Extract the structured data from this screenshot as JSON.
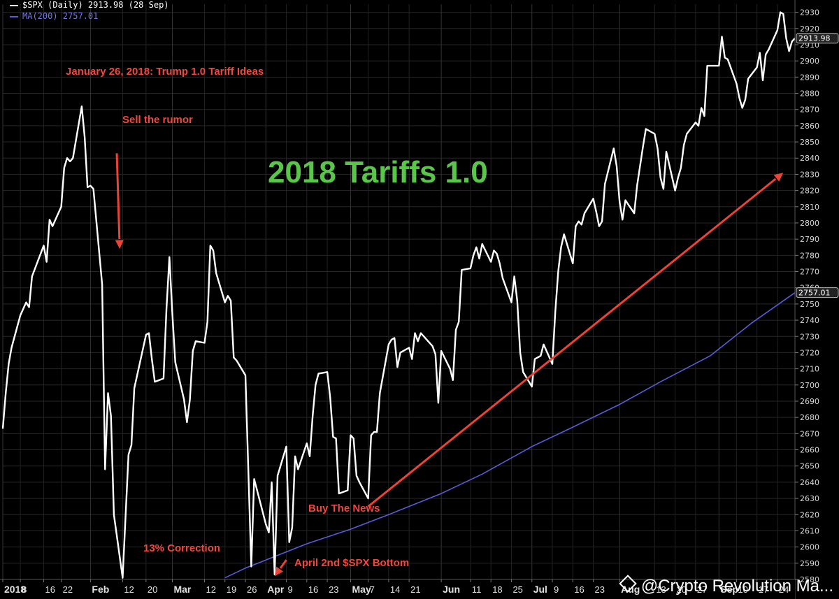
{
  "chart_data": {
    "type": "line",
    "legend": [
      {
        "name": "$SPX (Daily) 2913.98 (28 Sep)",
        "color": "#ffffff"
      },
      {
        "name": "MA(200) 2757.01",
        "color": "#5b5bd6"
      }
    ],
    "xlim": [
      "2018-01-02",
      "2018-09-30"
    ],
    "ylim": [
      2580,
      2935
    ],
    "y_ticks": [
      2580,
      2590,
      2600,
      2610,
      2620,
      2630,
      2640,
      2650,
      2660,
      2670,
      2680,
      2690,
      2700,
      2710,
      2720,
      2730,
      2740,
      2750,
      2760,
      2770,
      2780,
      2790,
      2800,
      2810,
      2820,
      2830,
      2840,
      2850,
      2860,
      2870,
      2880,
      2890,
      2900,
      2910,
      2920,
      2930
    ],
    "x_ticks": [
      {
        "date": "2018-01-02",
        "label": "2018",
        "bold": true
      },
      {
        "date": "2018-01-08",
        "label": "8"
      },
      {
        "date": "2018-01-16",
        "label": "16"
      },
      {
        "date": "2018-01-22",
        "label": "22"
      },
      {
        "date": "2018-02-01",
        "label": "Feb",
        "bold": true
      },
      {
        "date": "2018-02-12",
        "label": "12"
      },
      {
        "date": "2018-02-20",
        "label": "20"
      },
      {
        "date": "2018-03-01",
        "label": "Mar",
        "bold": true
      },
      {
        "date": "2018-03-12",
        "label": "12"
      },
      {
        "date": "2018-03-19",
        "label": "19"
      },
      {
        "date": "2018-03-26",
        "label": "26"
      },
      {
        "date": "2018-04-02",
        "label": "Apr",
        "bold": true
      },
      {
        "date": "2018-04-09",
        "label": "9"
      },
      {
        "date": "2018-04-16",
        "label": "16"
      },
      {
        "date": "2018-04-23",
        "label": "23"
      },
      {
        "date": "2018-05-01",
        "label": "May",
        "bold": true
      },
      {
        "date": "2018-05-07",
        "label": "7"
      },
      {
        "date": "2018-05-14",
        "label": "14"
      },
      {
        "date": "2018-05-21",
        "label": "21"
      },
      {
        "date": "2018-06-01",
        "label": "Jun",
        "bold": true
      },
      {
        "date": "2018-06-11",
        "label": "11"
      },
      {
        "date": "2018-06-18",
        "label": "18"
      },
      {
        "date": "2018-06-25",
        "label": "25"
      },
      {
        "date": "2018-07-02",
        "label": "Jul",
        "bold": true
      },
      {
        "date": "2018-07-09",
        "label": "9"
      },
      {
        "date": "2018-07-16",
        "label": "16"
      },
      {
        "date": "2018-07-23",
        "label": "23"
      },
      {
        "date": "2018-08-01",
        "label": "Aug",
        "bold": true
      },
      {
        "date": "2018-08-13",
        "label": "13"
      },
      {
        "date": "2018-08-20",
        "label": "20"
      },
      {
        "date": "2018-08-27",
        "label": "27"
      },
      {
        "date": "2018-09-04",
        "label": "Sep",
        "bold": true
      },
      {
        "date": "2018-09-10",
        "label": "10"
      },
      {
        "date": "2018-09-17",
        "label": "17"
      },
      {
        "date": "2018-09-24",
        "label": "24"
      }
    ],
    "last_value_labels": [
      {
        "value": 2913.98,
        "label": "2913.98"
      },
      {
        "value": 2757.01,
        "label": "2757.01"
      }
    ],
    "series": [
      {
        "name": "$SPX (Daily)",
        "color": "#ffffff",
        "points": [
          [
            "2018-01-02",
            2673
          ],
          [
            "2018-01-03",
            2695
          ],
          [
            "2018-01-04",
            2713
          ],
          [
            "2018-01-05",
            2723
          ],
          [
            "2018-01-08",
            2743
          ],
          [
            "2018-01-09",
            2747
          ],
          [
            "2018-01-10",
            2751
          ],
          [
            "2018-01-11",
            2748
          ],
          [
            "2018-01-12",
            2767
          ],
          [
            "2018-01-16",
            2786
          ],
          [
            "2018-01-17",
            2776
          ],
          [
            "2018-01-18",
            2802
          ],
          [
            "2018-01-19",
            2798
          ],
          [
            "2018-01-22",
            2810
          ],
          [
            "2018-01-23",
            2834
          ],
          [
            "2018-01-24",
            2840
          ],
          [
            "2018-01-25",
            2838
          ],
          [
            "2018-01-26",
            2840
          ],
          [
            "2018-01-29",
            2872
          ],
          [
            "2018-01-30",
            2853
          ],
          [
            "2018-01-31",
            2822
          ],
          [
            "2018-02-01",
            2823
          ],
          [
            "2018-02-02",
            2821
          ],
          [
            "2018-02-05",
            2762
          ],
          [
            "2018-02-06",
            2648
          ],
          [
            "2018-02-07",
            2695
          ],
          [
            "2018-02-08",
            2681
          ],
          [
            "2018-02-09",
            2620
          ],
          [
            "2018-02-12",
            2581
          ],
          [
            "2018-02-13",
            2619
          ],
          [
            "2018-02-14",
            2657
          ],
          [
            "2018-02-15",
            2663
          ],
          [
            "2018-02-16",
            2698
          ],
          [
            "2018-02-20",
            2731
          ],
          [
            "2018-02-21",
            2732
          ],
          [
            "2018-02-22",
            2716
          ],
          [
            "2018-02-23",
            2702
          ],
          [
            "2018-02-26",
            2704
          ],
          [
            "2018-02-27",
            2747
          ],
          [
            "2018-02-28",
            2779
          ],
          [
            "2018-03-01",
            2744
          ],
          [
            "2018-03-02",
            2714
          ],
          [
            "2018-03-05",
            2691
          ],
          [
            "2018-03-06",
            2677
          ],
          [
            "2018-03-07",
            2691
          ],
          [
            "2018-03-08",
            2721
          ],
          [
            "2018-03-09",
            2727
          ],
          [
            "2018-03-12",
            2726
          ],
          [
            "2018-03-13",
            2739
          ],
          [
            "2018-03-14",
            2786
          ],
          [
            "2018-03-15",
            2783
          ],
          [
            "2018-03-16",
            2769
          ],
          [
            "2018-03-19",
            2751
          ],
          [
            "2018-03-20",
            2755
          ],
          [
            "2018-03-21",
            2752
          ],
          [
            "2018-03-22",
            2717
          ],
          [
            "2018-03-23",
            2715
          ],
          [
            "2018-03-26",
            2706
          ],
          [
            "2018-03-27",
            2647
          ],
          [
            "2018-03-28",
            2588
          ],
          [
            "2018-03-29",
            2642
          ],
          [
            "2018-04-02",
            2614
          ],
          [
            "2018-04-03",
            2609
          ],
          [
            "2018-04-04",
            2640
          ],
          [
            "2018-04-05",
            2583
          ],
          [
            "2018-04-06",
            2644
          ],
          [
            "2018-04-09",
            2662
          ],
          [
            "2018-04-10",
            2603
          ],
          [
            "2018-04-11",
            2612
          ],
          [
            "2018-04-12",
            2656
          ],
          [
            "2018-04-13",
            2648
          ],
          [
            "2018-04-16",
            2664
          ],
          [
            "2018-04-17",
            2656
          ],
          [
            "2018-04-18",
            2681
          ],
          [
            "2018-04-19",
            2700
          ],
          [
            "2018-04-20",
            2707
          ],
          [
            "2018-04-23",
            2708
          ],
          [
            "2018-04-24",
            2692
          ],
          [
            "2018-04-25",
            2668
          ],
          [
            "2018-04-26",
            2667
          ],
          [
            "2018-04-27",
            2633
          ],
          [
            "2018-04-30",
            2635
          ],
          [
            "2018-05-01",
            2669
          ],
          [
            "2018-05-02",
            2667
          ],
          [
            "2018-05-03",
            2644
          ],
          [
            "2018-05-04",
            2640
          ],
          [
            "2018-05-07",
            2630
          ],
          [
            "2018-05-08",
            2669
          ],
          [
            "2018-05-09",
            2671
          ],
          [
            "2018-05-10",
            2671
          ],
          [
            "2018-05-11",
            2695
          ],
          [
            "2018-05-14",
            2725
          ],
          [
            "2018-05-15",
            2728
          ],
          [
            "2018-05-16",
            2729
          ],
          [
            "2018-05-17",
            2711
          ],
          [
            "2018-05-18",
            2720
          ],
          [
            "2018-05-21",
            2723
          ],
          [
            "2018-05-22",
            2716
          ],
          [
            "2018-05-23",
            2732
          ],
          [
            "2018-05-24",
            2727
          ],
          [
            "2018-05-25",
            2732
          ],
          [
            "2018-05-29",
            2724
          ],
          [
            "2018-05-30",
            2719
          ],
          [
            "2018-05-31",
            2689
          ],
          [
            "2018-06-01",
            2721
          ],
          [
            "2018-06-04",
            2710
          ],
          [
            "2018-06-05",
            2703
          ],
          [
            "2018-06-06",
            2734
          ],
          [
            "2018-06-07",
            2739
          ],
          [
            "2018-06-08",
            2771
          ],
          [
            "2018-06-11",
            2772
          ],
          [
            "2018-06-12",
            2780
          ],
          [
            "2018-06-13",
            2785
          ],
          [
            "2018-06-14",
            2778
          ],
          [
            "2018-06-15",
            2787
          ],
          [
            "2018-06-18",
            2776
          ],
          [
            "2018-06-19",
            2783
          ],
          [
            "2018-06-20",
            2781
          ],
          [
            "2018-06-21",
            2775
          ],
          [
            "2018-06-22",
            2766
          ],
          [
            "2018-06-25",
            2751
          ],
          [
            "2018-06-26",
            2767
          ],
          [
            "2018-06-27",
            2752
          ],
          [
            "2018-06-28",
            2720
          ],
          [
            "2018-06-29",
            2708
          ],
          [
            "2018-07-02",
            2699
          ],
          [
            "2018-07-03",
            2716
          ],
          [
            "2018-07-05",
            2718
          ],
          [
            "2018-07-06",
            2725
          ],
          [
            "2018-07-09",
            2713
          ],
          [
            "2018-07-10",
            2745
          ],
          [
            "2018-07-11",
            2770
          ],
          [
            "2018-07-12",
            2785
          ],
          [
            "2018-07-13",
            2793
          ],
          [
            "2018-07-16",
            2775
          ],
          [
            "2018-07-17",
            2798
          ],
          [
            "2018-07-18",
            2801
          ],
          [
            "2018-07-19",
            2799
          ],
          [
            "2018-07-20",
            2806
          ],
          [
            "2018-07-23",
            2815
          ],
          [
            "2018-07-24",
            2807
          ],
          [
            "2018-07-25",
            2798
          ],
          [
            "2018-07-26",
            2801
          ],
          [
            "2018-07-27",
            2824
          ],
          [
            "2018-07-30",
            2846
          ],
          [
            "2018-07-31",
            2835
          ],
          [
            "2018-08-01",
            2813
          ],
          [
            "2018-08-02",
            2802
          ],
          [
            "2018-08-03",
            2814
          ],
          [
            "2018-08-06",
            2806
          ],
          [
            "2018-08-07",
            2823
          ],
          [
            "2018-08-08",
            2835
          ],
          [
            "2018-08-09",
            2847
          ],
          [
            "2018-08-10",
            2858
          ],
          [
            "2018-08-13",
            2855
          ],
          [
            "2018-08-14",
            2846
          ],
          [
            "2018-08-15",
            2828
          ],
          [
            "2018-08-16",
            2821
          ],
          [
            "2018-08-17",
            2844
          ],
          [
            "2018-08-20",
            2820
          ],
          [
            "2018-08-21",
            2828
          ],
          [
            "2018-08-22",
            2834
          ],
          [
            "2018-08-23",
            2848
          ],
          [
            "2018-08-24",
            2855
          ],
          [
            "2018-08-27",
            2862
          ],
          [
            "2018-08-28",
            2860
          ],
          [
            "2018-08-29",
            2871
          ],
          [
            "2018-08-30",
            2866
          ],
          [
            "2018-08-31",
            2897
          ],
          [
            "2018-09-04",
            2897
          ],
          [
            "2018-09-05",
            2915
          ],
          [
            "2018-09-06",
            2902
          ],
          [
            "2018-09-07",
            2901
          ],
          [
            "2018-09-10",
            2886
          ],
          [
            "2018-09-11",
            2877
          ],
          [
            "2018-09-12",
            2871
          ],
          [
            "2018-09-13",
            2876
          ],
          [
            "2018-09-14",
            2889
          ],
          [
            "2018-09-17",
            2896
          ],
          [
            "2018-09-18",
            2905
          ],
          [
            "2018-09-19",
            2888
          ],
          [
            "2018-09-20",
            2904
          ],
          [
            "2018-09-21",
            2907
          ],
          [
            "2018-09-24",
            2919
          ],
          [
            "2018-09-25",
            2930
          ],
          [
            "2018-09-26",
            2929
          ],
          [
            "2018-09-27",
            2914
          ],
          [
            "2018-09-28",
            2906
          ],
          [
            "2018-09-29",
            2912
          ],
          [
            "2018-09-30",
            2914
          ]
        ]
      },
      {
        "name": "MA(200)",
        "color": "#5b5bd6",
        "points": [
          [
            "2018-03-19",
            2581
          ],
          [
            "2018-03-26",
            2587
          ],
          [
            "2018-04-02",
            2592
          ],
          [
            "2018-04-16",
            2602
          ],
          [
            "2018-05-01",
            2611
          ],
          [
            "2018-05-14",
            2620
          ],
          [
            "2018-06-01",
            2633
          ],
          [
            "2018-06-15",
            2645
          ],
          [
            "2018-07-02",
            2662
          ],
          [
            "2018-07-16",
            2674
          ],
          [
            "2018-08-01",
            2688
          ],
          [
            "2018-08-15",
            2702
          ],
          [
            "2018-09-01",
            2718
          ],
          [
            "2018-09-15",
            2738
          ],
          [
            "2018-09-30",
            2757
          ]
        ]
      }
    ],
    "annotations": [
      {
        "text": "January 26, 2018: Trump 1.0 Tariff Ideas"
      },
      {
        "text": "Sell the rumor"
      },
      {
        "text": "13% Correction"
      },
      {
        "text": "Buy The News"
      },
      {
        "text": "April 2nd $SPX Bottom"
      },
      {
        "text": "2018 Tariffs 1.0"
      }
    ],
    "arrows": [
      {
        "name": "sell-arrow",
        "from": [
          "2018-02-10",
          2843
        ],
        "to": [
          "2018-02-11",
          2784
        ]
      },
      {
        "name": "buy-arrow",
        "from": [
          "2018-05-07",
          2625
        ],
        "to": [
          "2018-09-26",
          2831
        ]
      },
      {
        "name": "bottom-arrow",
        "from": [
          "2018-04-09",
          2592
        ],
        "to": [
          "2018-04-05",
          2582
        ]
      }
    ]
  },
  "watermark": "@Crypto Revolution Ma..."
}
